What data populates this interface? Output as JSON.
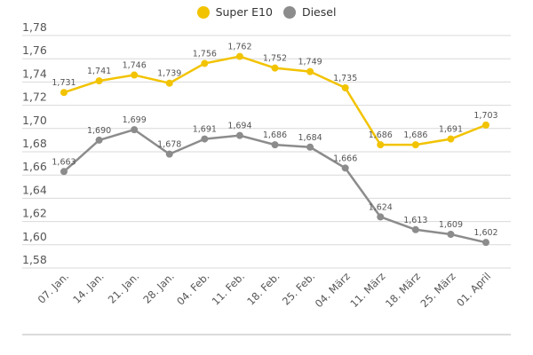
{
  "chart_data": {
    "type": "line",
    "title": "",
    "xlabel": "",
    "ylabel": "",
    "categories": [
      "07. Jan.",
      "14. Jan.",
      "21. Jan.",
      "28. Jan.",
      "04. Feb.",
      "11. Feb.",
      "18. Feb.",
      "25. Feb.",
      "04. März",
      "11. März",
      "18. März",
      "25. März",
      "01. April"
    ],
    "ylim": [
      1.58,
      1.78
    ],
    "yticks": [
      "1,58",
      "1,60",
      "1,62",
      "1,64",
      "1,66",
      "1,68",
      "1,70",
      "1,72",
      "1,74",
      "1,76",
      "1,78"
    ],
    "ytick_values": [
      1.58,
      1.6,
      1.62,
      1.64,
      1.66,
      1.68,
      1.7,
      1.72,
      1.74,
      1.76,
      1.78
    ],
    "grid": true,
    "legend_position": "top-center",
    "series": [
      {
        "name": "Super E10",
        "color": "#f2c300",
        "values": [
          1.731,
          1.741,
          1.746,
          1.739,
          1.756,
          1.762,
          1.752,
          1.749,
          1.735,
          1.686,
          1.686,
          1.691,
          1.703
        ],
        "labels": [
          "1,731",
          "1,741",
          "1,746",
          "1,739",
          "1,756",
          "1,762",
          "1,752",
          "1,749",
          "1,735",
          "1,686",
          "1,686",
          "1,691",
          "1,703"
        ]
      },
      {
        "name": "Diesel",
        "color": "#8c8c8c",
        "values": [
          1.663,
          1.69,
          1.699,
          1.678,
          1.691,
          1.694,
          1.686,
          1.684,
          1.666,
          1.624,
          1.613,
          1.609,
          1.602
        ],
        "labels": [
          "1,663",
          "1,690",
          "1,699",
          "1,678",
          "1,691",
          "1,694",
          "1,686",
          "1,684",
          "1,666",
          "1,624",
          "1,613",
          "1,609",
          "1,602"
        ]
      }
    ]
  }
}
